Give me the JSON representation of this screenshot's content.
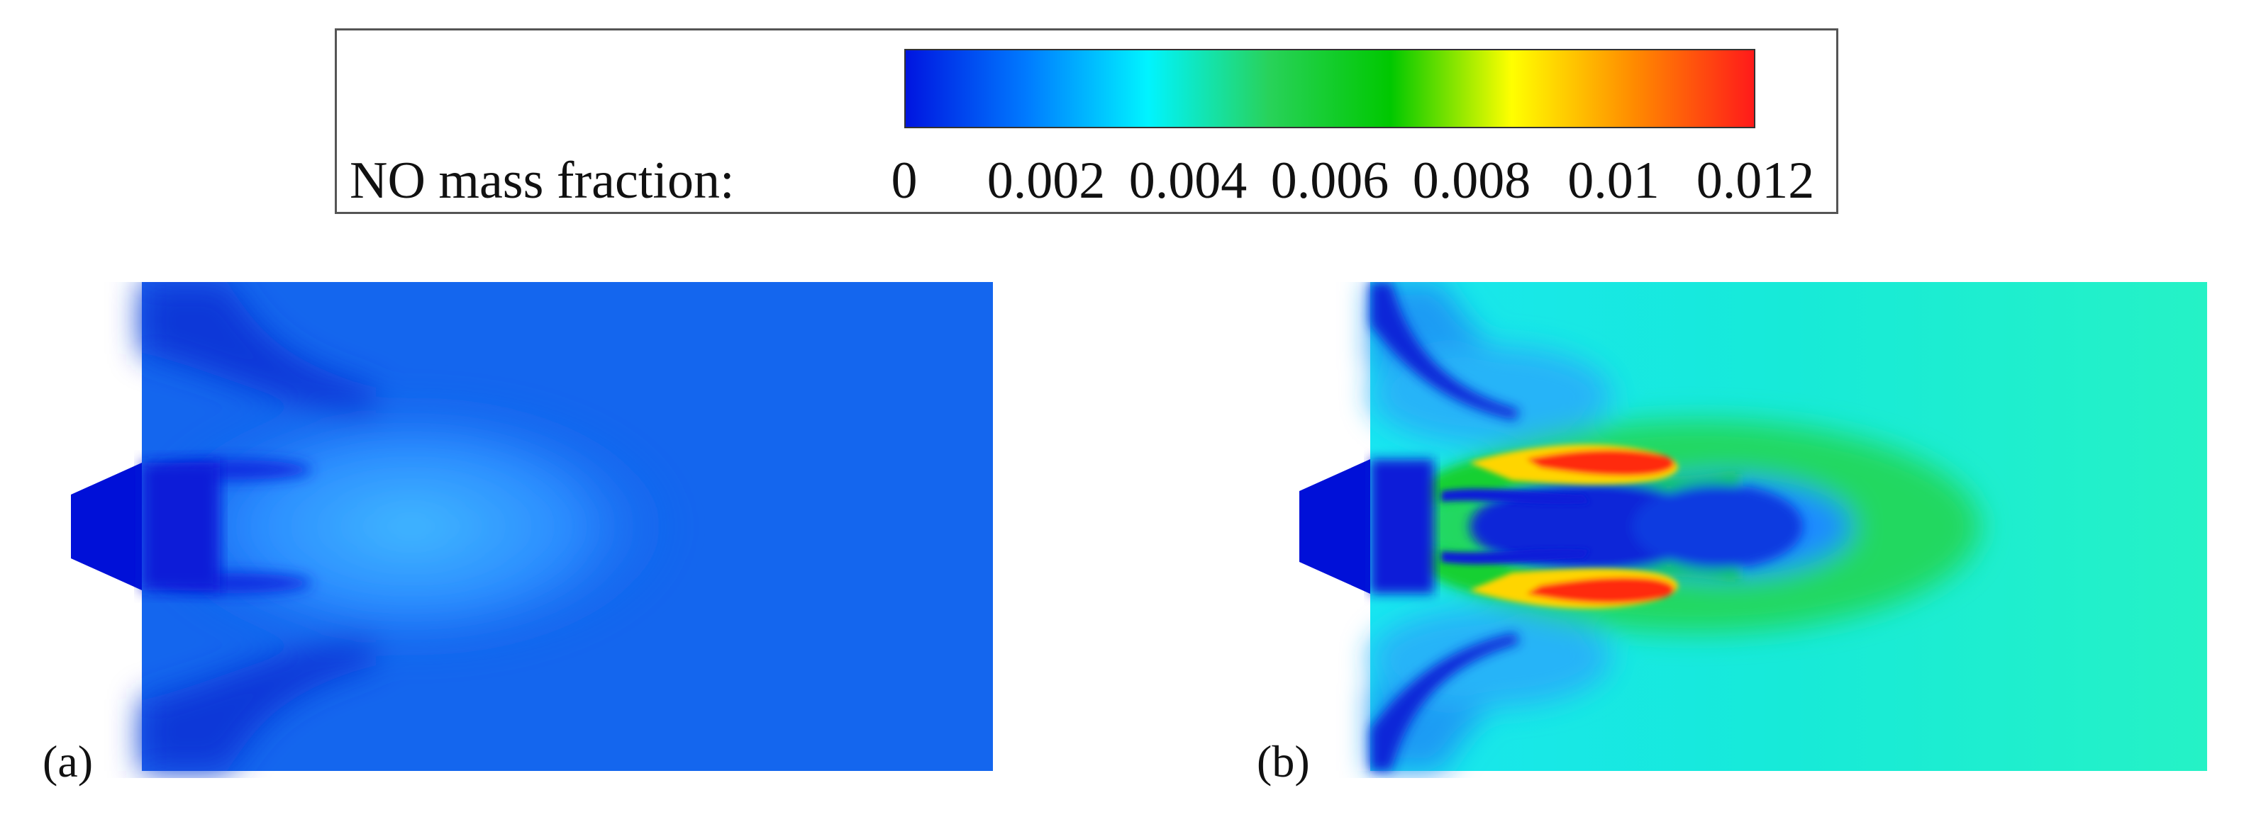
{
  "legend": {
    "label": "NO mass fraction:",
    "ticks": [
      "0",
      "0.002",
      "0.004",
      "0.006",
      "0.008",
      "0.01",
      "0.012"
    ],
    "colormap": [
      "#0015e0",
      "#007bff",
      "#00f4ff",
      "#28d25a",
      "#00c800",
      "#ffff00",
      "#ff8c00",
      "#ff1a1a"
    ]
  },
  "panels": [
    {
      "label": "(a)"
    },
    {
      "label": "(b)"
    }
  ],
  "colors": {
    "panel_a_background": "#1466ee",
    "panel_b_background": "#1ff0d0",
    "nozzle": "#0010d8",
    "hot_spot": "#ff1a1a"
  }
}
